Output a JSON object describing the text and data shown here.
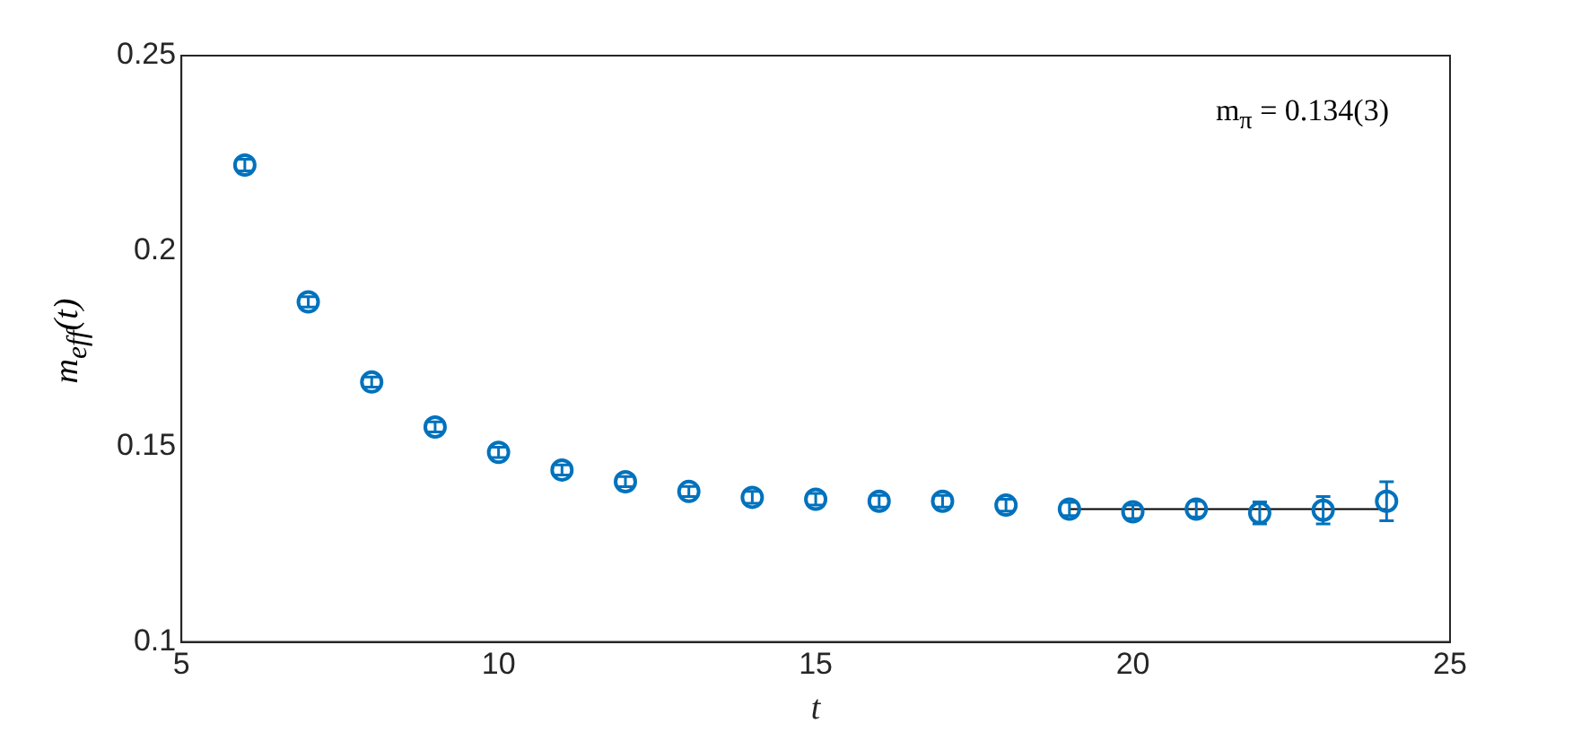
{
  "chart_data": {
    "type": "scatter",
    "xlabel": "t",
    "ylabel": "m$_{eff}$(t)",
    "x": [
      6,
      7,
      8,
      9,
      10,
      11,
      12,
      13,
      14,
      15,
      16,
      17,
      18,
      19,
      20,
      21,
      22,
      23,
      24
    ],
    "series": [
      {
        "color": "#0072bd",
        "marker": "circle",
        "values": [
          0.222,
          0.187,
          0.1665,
          0.155,
          0.1485,
          0.144,
          0.141,
          0.1385,
          0.137,
          0.1365,
          0.136,
          0.136,
          0.135,
          0.134,
          0.1333,
          0.134,
          0.133,
          0.1337,
          0.136
        ],
        "errors": [
          0.0015,
          0.0013,
          0.0013,
          0.0013,
          0.0013,
          0.0013,
          0.0013,
          0.0013,
          0.0015,
          0.0015,
          0.0015,
          0.0015,
          0.0015,
          0.0017,
          0.0017,
          0.002,
          0.0028,
          0.0035,
          0.005
        ]
      },
      {
        "type": "line",
        "color": "#000000",
        "x": [
          19,
          24
        ],
        "values": [
          0.134,
          0.134
        ]
      }
    ],
    "annotations": [
      "m$_{π}$ = 0.134(3)"
    ],
    "xlim": [
      5,
      25
    ],
    "xticks": [
      5,
      10,
      15,
      20,
      25
    ],
    "ylim": [
      0.1,
      0.25
    ],
    "yticks": [
      0.1,
      0.15,
      0.2,
      0.25
    ],
    "grid": false,
    "legend": false
  }
}
